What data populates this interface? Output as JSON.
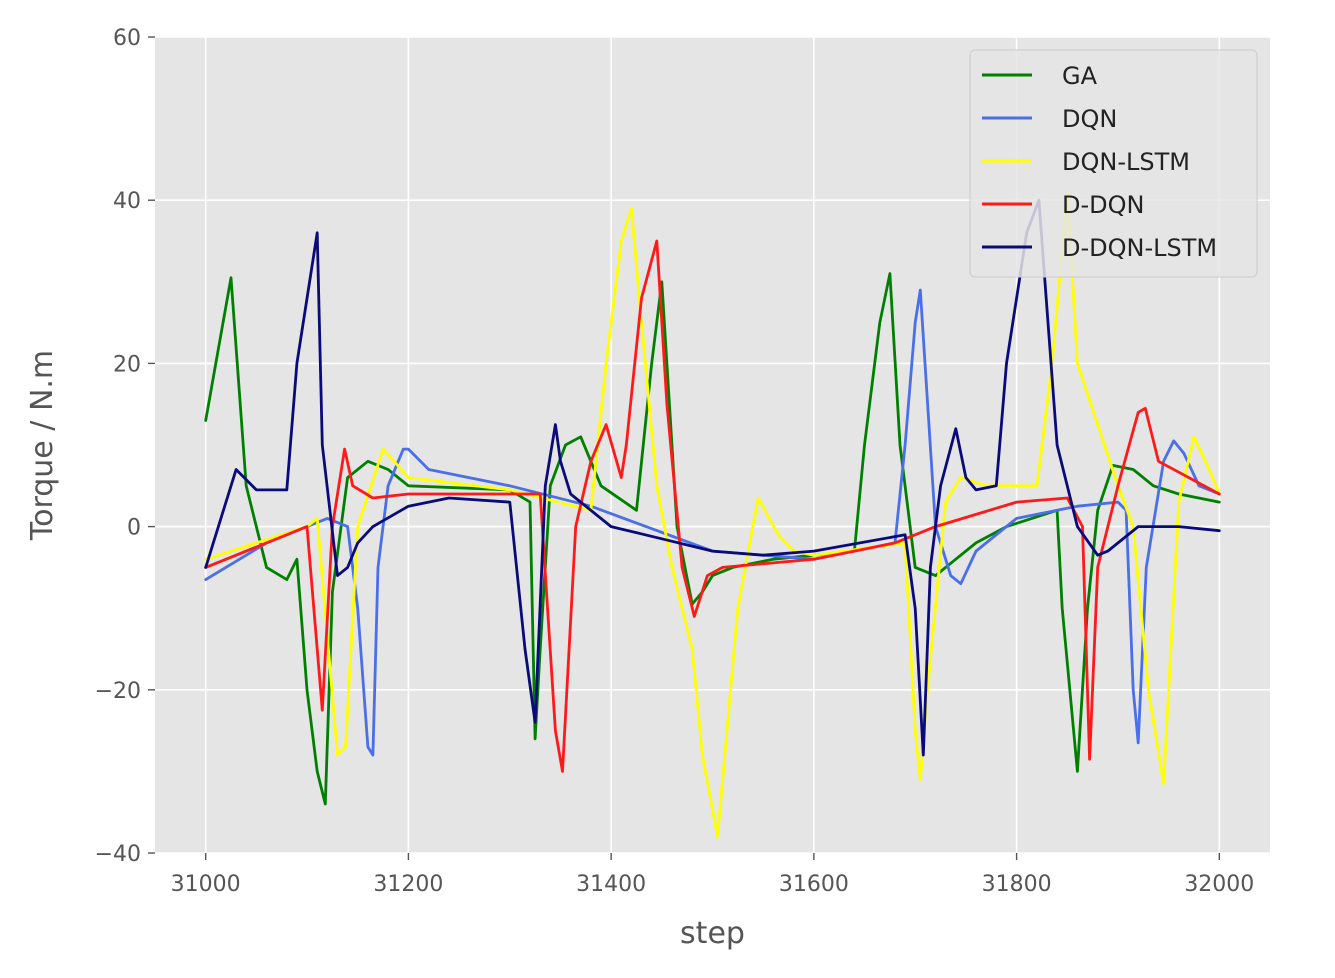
{
  "chart_data": {
    "type": "line",
    "title": "",
    "xlabel": "step",
    "ylabel": "Torque / N.m",
    "xlim": [
      30950,
      32050
    ],
    "ylim": [
      -40,
      60
    ],
    "xticks": [
      31000,
      31200,
      31400,
      31600,
      31800,
      32000
    ],
    "yticks": [
      -40,
      -20,
      0,
      20,
      40,
      60
    ],
    "ytick_labels": [
      "−40",
      "−20",
      "0",
      "20",
      "40",
      "60"
    ],
    "grid": true,
    "background": "#e5e5e5",
    "legend_position": "top-right",
    "series": [
      {
        "name": "GA",
        "color": "#008000",
        "x": [
          31000,
          31010,
          31025,
          31040,
          31060,
          31080,
          31090,
          31100,
          31110,
          31118,
          31125,
          31140,
          31160,
          31180,
          31200,
          31300,
          31320,
          31325,
          31330,
          31340,
          31355,
          31370,
          31390,
          31425,
          31440,
          31450,
          31455,
          31465,
          31480,
          31490,
          31500,
          31520,
          31560,
          31600,
          31640,
          31650,
          31665,
          31675,
          31685,
          31700,
          31720,
          31740,
          31760,
          31790,
          31840,
          31845,
          31860,
          31870,
          31880,
          31895,
          31915,
          31935,
          31960,
          32000
        ],
        "y": [
          13,
          20,
          30.5,
          5,
          -5,
          -6.5,
          -4,
          -20,
          -30,
          -34,
          -8,
          6,
          8,
          7,
          5,
          4.5,
          3,
          -26,
          -15,
          5,
          10,
          11,
          5,
          2,
          20,
          30,
          20,
          0,
          -9.5,
          -8,
          -6,
          -5,
          -4,
          -3.5,
          -3,
          10,
          25,
          31,
          10,
          -5,
          -6,
          -4,
          -2,
          0,
          2,
          -10,
          -30,
          -10,
          2,
          7.5,
          7,
          5,
          4,
          3
        ]
      },
      {
        "name": "DQN",
        "color": "#4a6fe8",
        "x": [
          31000,
          31060,
          31100,
          31120,
          31140,
          31150,
          31160,
          31165,
          31170,
          31180,
          31195,
          31200,
          31220,
          31300,
          31380,
          31500,
          31600,
          31680,
          31690,
          31700,
          31705,
          31720,
          31735,
          31745,
          31760,
          31800,
          31860,
          31900,
          31908,
          31915,
          31920,
          31928,
          31945,
          31955,
          31965,
          31980,
          32000
        ],
        "y": [
          -6.5,
          -2,
          0,
          1,
          0,
          -10,
          -27,
          -28,
          -5,
          5,
          9.5,
          9.5,
          7,
          5,
          2.5,
          -3,
          -4,
          -2,
          10,
          25,
          29,
          0,
          -6,
          -7,
          -3,
          1,
          2.5,
          3,
          2,
          -20,
          -26.5,
          -5,
          8,
          10.5,
          9,
          5,
          4
        ]
      },
      {
        "name": "DQN-LSTM",
        "color": "#ffff00",
        "x": [
          31000,
          31050,
          31100,
          31110,
          31130,
          31138,
          31150,
          31175,
          31200,
          31300,
          31380,
          31395,
          31410,
          31420,
          31430,
          31445,
          31460,
          31480,
          31490,
          31505,
          31525,
          31545,
          31565,
          31580,
          31600,
          31690,
          31700,
          31705,
          31712,
          31730,
          31745,
          31770,
          31820,
          31835,
          31850,
          31860,
          31900,
          31915,
          31930,
          31945,
          31960,
          31975,
          31990,
          32000
        ],
        "y": [
          -4,
          -2,
          0,
          1,
          -28,
          -27,
          0,
          9.5,
          6,
          4.5,
          2,
          20,
          35,
          39,
          25,
          5,
          -5,
          -15,
          -28,
          -38,
          -10,
          3.5,
          -1,
          -3,
          -3.5,
          -2,
          -25,
          -31,
          -20,
          3,
          6,
          5,
          5,
          20,
          41,
          20,
          5,
          0,
          -20,
          -31.5,
          3,
          11,
          7,
          4
        ]
      },
      {
        "name": "D-DQN",
        "color": "#ff1a1a",
        "x": [
          31000,
          31050,
          31100,
          31110,
          31115,
          31125,
          31137,
          31145,
          31165,
          31200,
          31330,
          31345,
          31352,
          31365,
          31380,
          31395,
          31410,
          31415,
          31430,
          31445,
          31455,
          31470,
          31482,
          31495,
          31510,
          31600,
          31680,
          31720,
          31760,
          31800,
          31850,
          31865,
          31872,
          31880,
          31900,
          31920,
          31927,
          31940,
          32000
        ],
        "y": [
          -5,
          -2.5,
          0,
          -15,
          -22.5,
          0,
          9.5,
          5,
          3.5,
          4,
          4,
          -25,
          -30,
          0,
          8,
          12.5,
          6,
          10,
          28,
          35,
          15,
          -5,
          -11,
          -6,
          -5,
          -4,
          -2,
          0,
          1.5,
          3,
          3.5,
          0,
          -28.5,
          -5,
          5,
          14,
          14.5,
          8,
          4
        ]
      },
      {
        "name": "D-DQN-LSTM",
        "color": "#0a0a7a",
        "x": [
          31000,
          31030,
          31050,
          31080,
          31090,
          31110,
          31115,
          31130,
          31140,
          31150,
          31165,
          31200,
          31240,
          31300,
          31315,
          31325,
          31335,
          31345,
          31350,
          31360,
          31400,
          31450,
          31500,
          31550,
          31600,
          31690,
          31700,
          31708,
          31715,
          31725,
          31740,
          31750,
          31760,
          31780,
          31790,
          31810,
          31822,
          31840,
          31860,
          31880,
          31890,
          31900,
          31920,
          31960,
          32000
        ],
        "y": [
          -5,
          7,
          4.5,
          4.5,
          20,
          36,
          10,
          -6,
          -5,
          -2,
          0,
          2.5,
          3.5,
          3,
          -15,
          -24,
          5,
          12.5,
          8,
          4,
          0,
          -1.5,
          -3,
          -3.5,
          -3,
          -1,
          -10,
          -28,
          -5,
          5,
          12,
          6,
          4.5,
          5,
          20,
          36,
          40,
          10,
          0,
          -3.5,
          -3,
          -2,
          0,
          0,
          -0.5
        ]
      }
    ]
  }
}
